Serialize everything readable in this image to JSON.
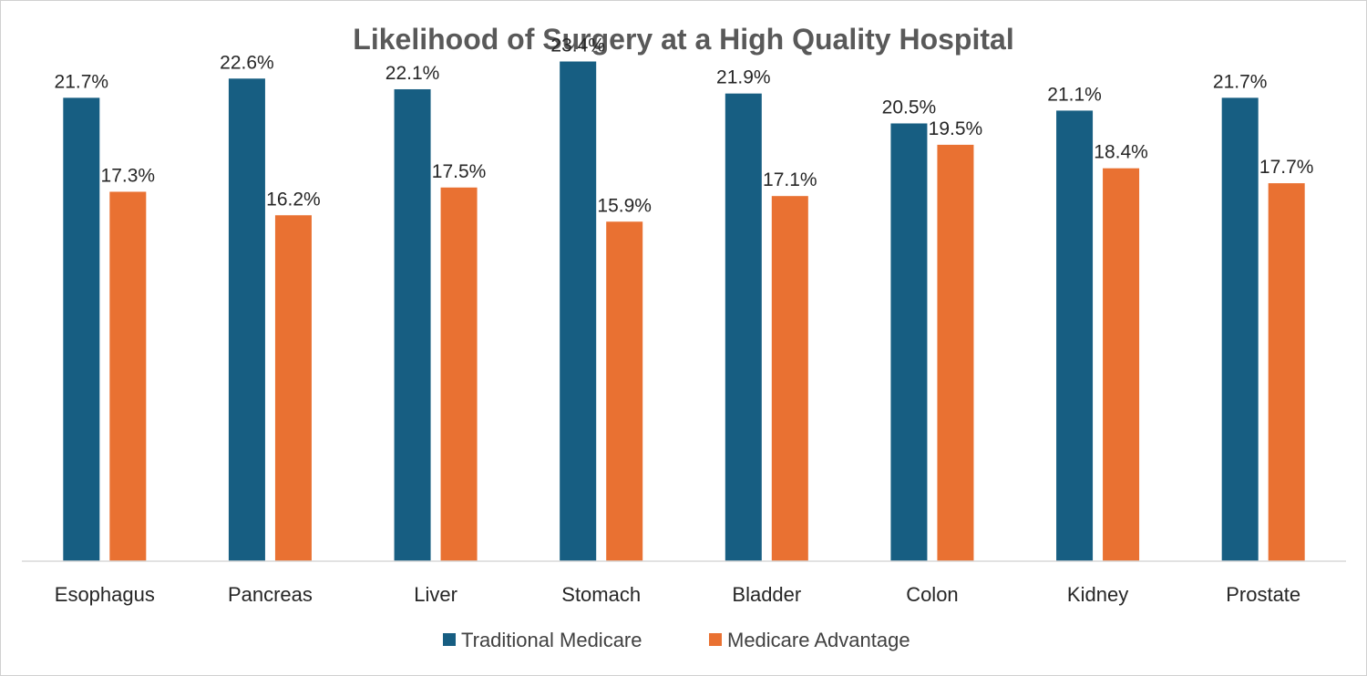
{
  "chart_data": {
    "type": "bar",
    "title": "Likelihood of Surgery at a High Quality Hospital",
    "xlabel": "",
    "ylabel": "",
    "categories": [
      "Esophagus",
      "Pancreas",
      "Liver",
      "Stomach",
      "Bladder",
      "Colon",
      "Kidney",
      "Prostate"
    ],
    "series": [
      {
        "name": "Traditional Medicare",
        "color": "#175E82",
        "values": [
          21.7,
          22.6,
          22.1,
          23.4,
          21.9,
          20.5,
          21.1,
          21.7
        ],
        "labels": [
          "21.7%",
          "22.6%",
          "22.1%",
          "23.4%",
          "21.9%",
          "20.5%",
          "21.1%",
          "21.7%"
        ]
      },
      {
        "name": "Medicare Advantage",
        "color": "#E97132",
        "values": [
          17.3,
          16.2,
          17.5,
          15.9,
          17.1,
          19.5,
          18.4,
          17.7
        ],
        "labels": [
          "17.3%",
          "16.2%",
          "17.5%",
          "15.9%",
          "17.1%",
          "19.5%",
          "18.4%",
          "17.7%"
        ]
      }
    ],
    "ylim": [
      0,
      25
    ],
    "grid": false,
    "legend_position": "bottom"
  }
}
